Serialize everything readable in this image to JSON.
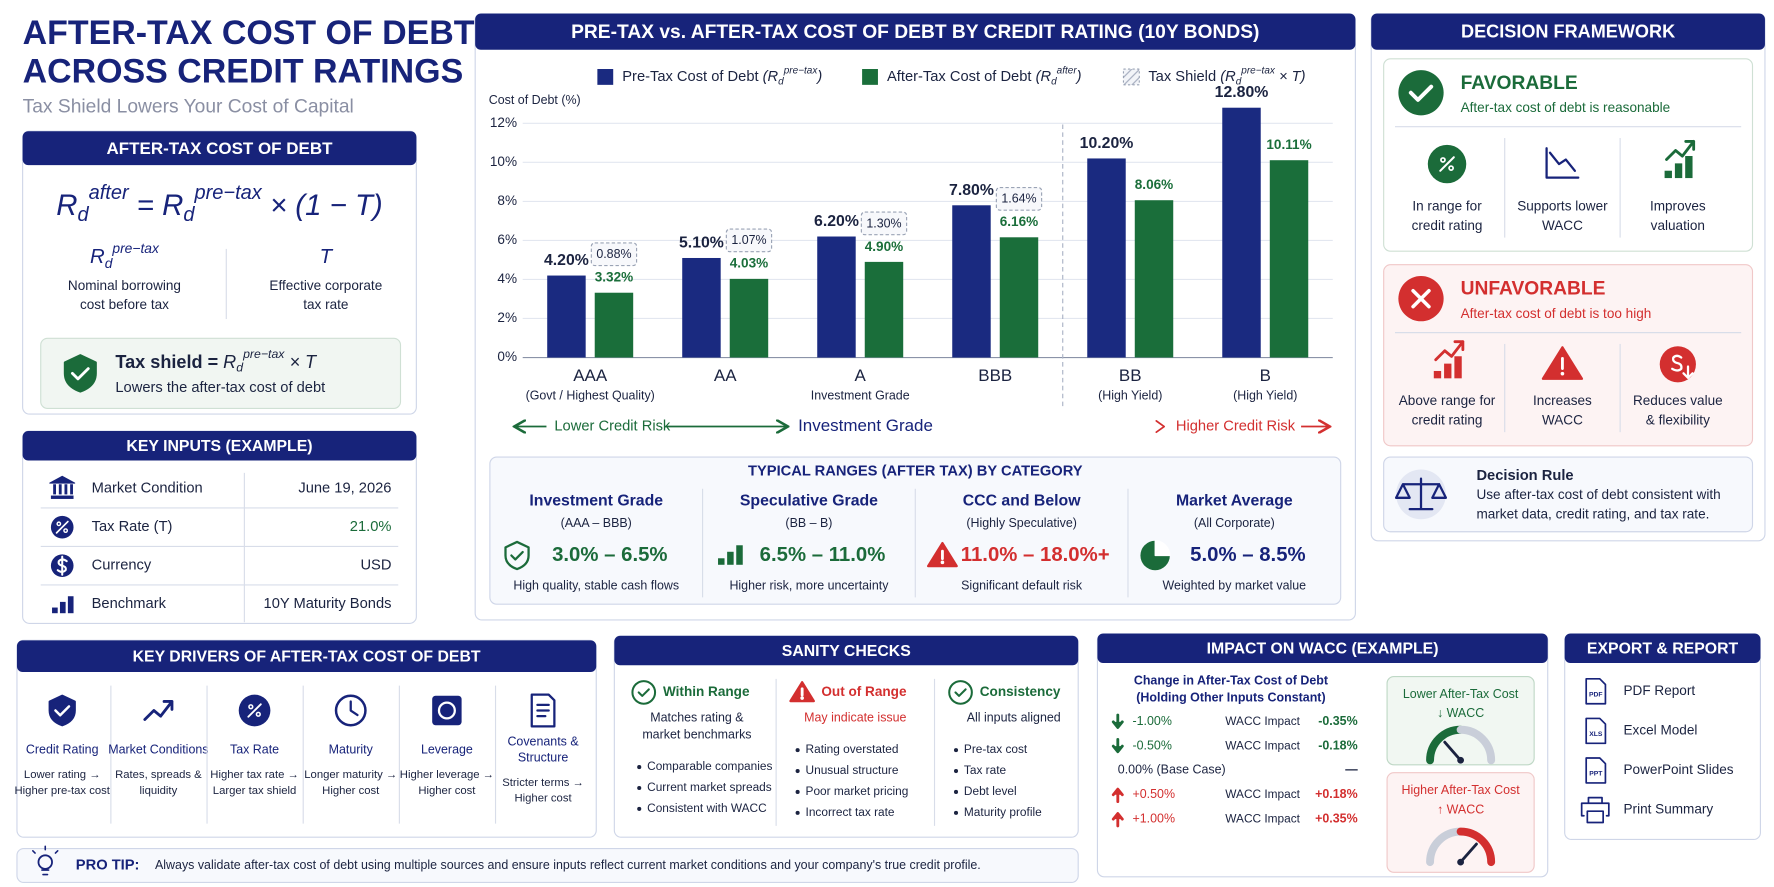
{
  "header": {
    "title": [
      "AFTER-TAX COST OF DEBT",
      "ACROSS CREDIT RATINGS"
    ],
    "subtitle": "Tax Shield Lowers Your Cost of Capital"
  },
  "formula_panel": {
    "title": "AFTER-TAX COST OF DEBT",
    "formula": [
      {
        "t": "R"
      },
      {
        "sub": "d"
      },
      {
        "sup": "after"
      },
      {
        "t": " = R"
      },
      {
        "sub": "d"
      },
      {
        "sup": "pre−tax"
      },
      {
        "t": " × (1 − T)"
      }
    ],
    "terms": [
      {
        "symbol": [
          {
            "t": "R"
          },
          {
            "sub": "d"
          },
          {
            "sup": "pre−tax"
          }
        ],
        "desc": [
          "Nominal borrowing",
          "cost before tax"
        ]
      },
      {
        "symbol": [
          {
            "t": "T"
          }
        ],
        "desc": [
          "Effective corporate",
          "tax rate"
        ]
      }
    ],
    "tax_shield": {
      "formula": [
        {
          "label": "Tax shield ="
        },
        {
          "t": " R"
        },
        {
          "sub": "d"
        },
        {
          "sup": "pre−tax"
        },
        {
          "t": " × T"
        }
      ],
      "note": "Lowers the after-tax cost of debt"
    }
  },
  "key_inputs": {
    "title": "KEY INPUTS (EXAMPLE)",
    "rows": [
      {
        "label": "Market Condition",
        "value": "June 19, 2026"
      },
      {
        "label": "Tax Rate (T)",
        "value": "21.0%",
        "value_color": "#1b6b3a"
      },
      {
        "label": "Currency",
        "value": "USD"
      },
      {
        "label": "Benchmark",
        "value": "10Y Maturity Bonds"
      }
    ]
  },
  "chart_data": {
    "type": "bar",
    "title": "PRE-TAX vs. AFTER-TAX COST OF DEBT BY CREDIT RATING (10Y BONDS)",
    "y_label": "Cost of Debt (%)",
    "categories": [
      "AAA",
      "AA",
      "A",
      "BBB",
      "BB",
      "B"
    ],
    "category_notes": [
      "(Govt / Highest Quality)",
      null,
      "Investment Grade",
      null,
      "(High Yield)",
      "(High Yield)"
    ],
    "series": [
      {
        "name": "Pre-Tax Cost of Debt",
        "symbol": [
          {
            "t": " (R"
          },
          {
            "sub": "d"
          },
          {
            "sup": "pre−tax"
          },
          {
            "t": ")"
          }
        ],
        "color": "#1a2a80",
        "values": [
          4.2,
          5.1,
          6.2,
          7.8,
          10.2,
          12.8
        ],
        "value_labels": [
          "4.20%",
          "5.10%",
          "6.20%",
          "7.80%",
          "10.20%",
          "12.80%"
        ]
      },
      {
        "name": "After-Tax Cost of Debt",
        "symbol": [
          {
            "t": " (R"
          },
          {
            "sub": "d"
          },
          {
            "sup": "after"
          },
          {
            "t": ")"
          }
        ],
        "color": "#1a6e3a",
        "values": [
          3.32,
          4.03,
          4.9,
          6.16,
          8.06,
          10.11
        ],
        "value_labels": [
          "3.32%",
          "4.03%",
          "4.90%",
          "6.16%",
          "8.06%",
          "10.11%"
        ]
      },
      {
        "name": "Tax Shield",
        "symbol": [
          {
            "t": " (R"
          },
          {
            "sub": "d"
          },
          {
            "sup": "pre−tax"
          },
          {
            "t": " × T)"
          }
        ],
        "color": "#9aa3b5",
        "values": [
          0.88,
          1.07,
          1.3,
          1.64,
          null,
          null
        ],
        "value_labels": [
          "0.88%",
          "1.07%",
          "1.30%",
          "1.64%",
          null,
          null
        ]
      }
    ],
    "ylim": [
      0,
      13
    ],
    "yticks": [
      {
        "value": 0,
        "label": "0%"
      },
      {
        "value": 2,
        "label": "2%"
      },
      {
        "value": 4,
        "label": "4%"
      },
      {
        "value": 6,
        "label": "6%"
      },
      {
        "value": 8,
        "label": "8%"
      },
      {
        "value": 10,
        "label": "10%"
      },
      {
        "value": 12,
        "label": "12%"
      }
    ],
    "grid": true,
    "risk_axis": {
      "left": "Lower Credit Risk",
      "center": "Investment Grade",
      "right": "Higher Credit Risk"
    }
  },
  "typical_ranges": {
    "title": "TYPICAL RANGES (AFTER TAX) BY CATEGORY",
    "items": [
      {
        "name": "Investment Grade",
        "sub": "(AAA – BBB)",
        "range": "3.0% – 6.5%",
        "note": "High quality, stable cash flows",
        "color": "#1b6b3a"
      },
      {
        "name": "Speculative Grade",
        "sub": "(BB – B)",
        "range": "6.5% – 11.0%",
        "note": "Higher risk, more uncertainty",
        "color": "#1b6b3a"
      },
      {
        "name": "CCC and Below",
        "sub": "(Highly Speculative)",
        "range": "11.0% – 18.0%+",
        "note": "Significant default risk",
        "color": "#d32f2f"
      },
      {
        "name": "Market Average",
        "sub": "(All Corporate)",
        "range": "5.0% – 8.5%",
        "note": "Weighted by market value",
        "color": "#17237a"
      }
    ]
  },
  "decision_framework": {
    "title": "DECISION FRAMEWORK",
    "favorable": {
      "title": "FAVORABLE",
      "desc": "After-tax cost of debt is reasonable",
      "items": [
        [
          "In range for",
          "credit rating"
        ],
        [
          "Supports lower",
          "WACC"
        ],
        [
          "Improves",
          "valuation"
        ]
      ]
    },
    "unfavorable": {
      "title": "UNFAVORABLE",
      "desc": "After-tax cost of debt is too high",
      "items": [
        [
          "Above range for",
          "credit rating"
        ],
        [
          "Increases",
          "WACC"
        ],
        [
          "Reduces value",
          "& flexibility"
        ]
      ]
    },
    "rule": {
      "title": "Decision Rule",
      "desc": [
        "Use after-tax cost of debt consistent with",
        "market data, credit rating, and tax rate."
      ]
    }
  },
  "key_drivers": {
    "title": "KEY DRIVERS OF AFTER-TAX COST OF DEBT",
    "items": [
      {
        "name": [
          "Credit Rating"
        ],
        "desc": [
          "Lower rating →",
          "Higher pre-tax cost"
        ]
      },
      {
        "name": [
          "Market Conditions"
        ],
        "desc": [
          "Rates, spreads &",
          "liquidity"
        ]
      },
      {
        "name": [
          "Tax Rate"
        ],
        "desc": [
          "Higher tax rate →",
          "Larger tax shield"
        ]
      },
      {
        "name": [
          "Maturity"
        ],
        "desc": [
          "Longer maturity →",
          "Higher cost"
        ]
      },
      {
        "name": [
          "Leverage"
        ],
        "desc": [
          "Higher leverage →",
          "Higher cost"
        ]
      },
      {
        "name": [
          "Covenants &",
          "Structure"
        ],
        "desc": [
          "Stricter terms →",
          "Higher cost"
        ]
      }
    ]
  },
  "sanity_checks": {
    "title": "SANITY CHECKS",
    "columns": [
      {
        "title": "Within Range",
        "desc": [
          "Matches rating &",
          "market benchmarks"
        ],
        "bullets": [
          "Comparable companies",
          "Current market spreads",
          "Consistent with WACC"
        ]
      },
      {
        "title": "Out of Range",
        "desc": [
          "May indicate issue"
        ],
        "bullets": [
          "Rating overstated",
          "Unusual structure",
          "Poor market pricing",
          "Incorrect tax rate"
        ]
      },
      {
        "title": "Consistency",
        "desc": [
          "All inputs aligned"
        ],
        "bullets": [
          "Pre-tax cost",
          "Tax rate",
          "Debt level",
          "Maturity profile"
        ]
      }
    ]
  },
  "impact_wacc": {
    "title": "IMPACT ON WACC (EXAMPLE)",
    "heading": [
      "Change in After-Tax Cost of Debt",
      "(Holding Other Inputs Constant)"
    ],
    "rows": [
      {
        "dir": "down",
        "change": "-1.00%",
        "label": "WACC Impact",
        "impact": "-0.35%"
      },
      {
        "dir": "down",
        "change": "-0.50%",
        "label": "WACC Impact",
        "impact": "-0.18%"
      },
      {
        "dir": "none",
        "change": "0.00% (Base Case)",
        "label": null,
        "impact": "—"
      },
      {
        "dir": "up",
        "change": "+0.50%",
        "label": "WACC Impact",
        "impact": "+0.18%"
      },
      {
        "dir": "up",
        "change": "+1.00%",
        "label": "WACC Impact",
        "impact": "+0.35%"
      }
    ],
    "gauges": [
      [
        "Lower After-Tax Cost",
        "↓ WACC"
      ],
      [
        "Higher After-Tax Cost",
        "↑ WACC"
      ]
    ]
  },
  "export": {
    "title": "EXPORT & REPORT",
    "items": [
      {
        "label": "PDF Report",
        "icon": "PDF"
      },
      {
        "label": "Excel Model",
        "icon": "XLS"
      },
      {
        "label": "PowerPoint Slides",
        "icon": "PPT"
      },
      {
        "label": "Print Summary",
        "icon": null
      }
    ]
  },
  "pro_tip": {
    "label": "PRO TIP:",
    "text": "Always validate after-tax cost of debt using multiple sources and ensure inputs reflect current market conditions and your company's true credit profile."
  }
}
